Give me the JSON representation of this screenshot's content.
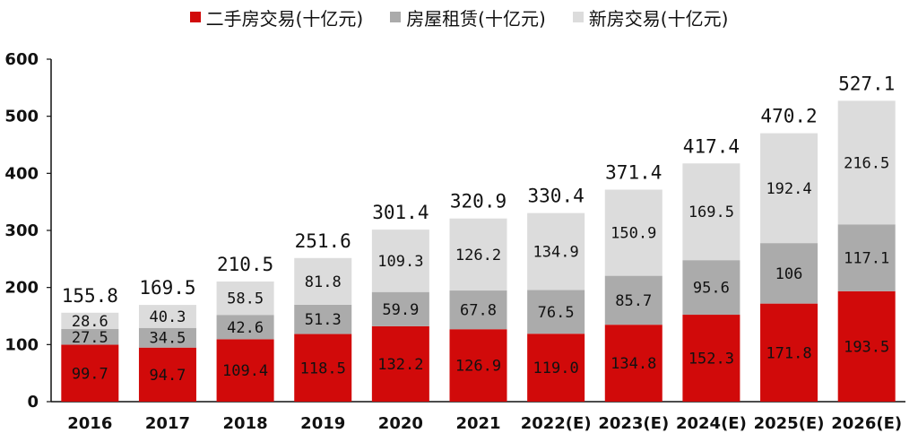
{
  "colors": {
    "series_0": "#d10a0a",
    "series_1": "#ababab",
    "series_2": "#dcdcdc",
    "axis": "#111111"
  },
  "chart_data": {
    "type": "bar",
    "stacked": true,
    "categories": [
      "2016",
      "2017",
      "2018",
      "2019",
      "2020",
      "2021",
      "2022(E)",
      "2023(E)",
      "2024(E)",
      "2025(E)",
      "2026(E)"
    ],
    "series": [
      {
        "name": "二手房交易(十亿元)",
        "values": [
          99.7,
          94.7,
          109.4,
          118.5,
          132.2,
          126.9,
          119.0,
          134.8,
          152.3,
          171.8,
          193.5
        ]
      },
      {
        "name": "房屋租赁(十亿元)",
        "values": [
          27.5,
          34.5,
          42.6,
          51.3,
          59.9,
          67.8,
          76.5,
          85.7,
          95.6,
          106,
          117.1
        ]
      },
      {
        "name": "新房交易(十亿元)",
        "values": [
          28.6,
          40.3,
          58.5,
          81.8,
          109.3,
          126.2,
          134.9,
          150.9,
          169.5,
          192.4,
          216.5
        ]
      }
    ],
    "segment_labels": [
      [
        "99.7",
        "94.7",
        "109.4",
        "118.5",
        "132.2",
        "126.9",
        "119.0",
        "134.8",
        "152.3",
        "171.8",
        "193.5"
      ],
      [
        "27.5",
        "34.5",
        "42.6",
        "51.3",
        "59.9",
        "67.8",
        "76.5",
        "85.7",
        "95.6",
        "106",
        "117.1"
      ],
      [
        "28.6",
        "40.3",
        "58.5",
        "81.8",
        "109.3",
        "126.2",
        "134.9",
        "150.9",
        "169.5",
        "192.4",
        "216.5"
      ]
    ],
    "totals": [
      "155.8",
      "169.5",
      "210.5",
      "251.6",
      "301.4",
      "320.9",
      "330.4",
      "371.4",
      "417.4",
      "470.2",
      "527.1"
    ],
    "y_ticks": [
      "0",
      "100",
      "200",
      "300",
      "400",
      "500",
      "600"
    ],
    "ylim": [
      0,
      600
    ],
    "grid": false,
    "legend_position": "top-center"
  }
}
